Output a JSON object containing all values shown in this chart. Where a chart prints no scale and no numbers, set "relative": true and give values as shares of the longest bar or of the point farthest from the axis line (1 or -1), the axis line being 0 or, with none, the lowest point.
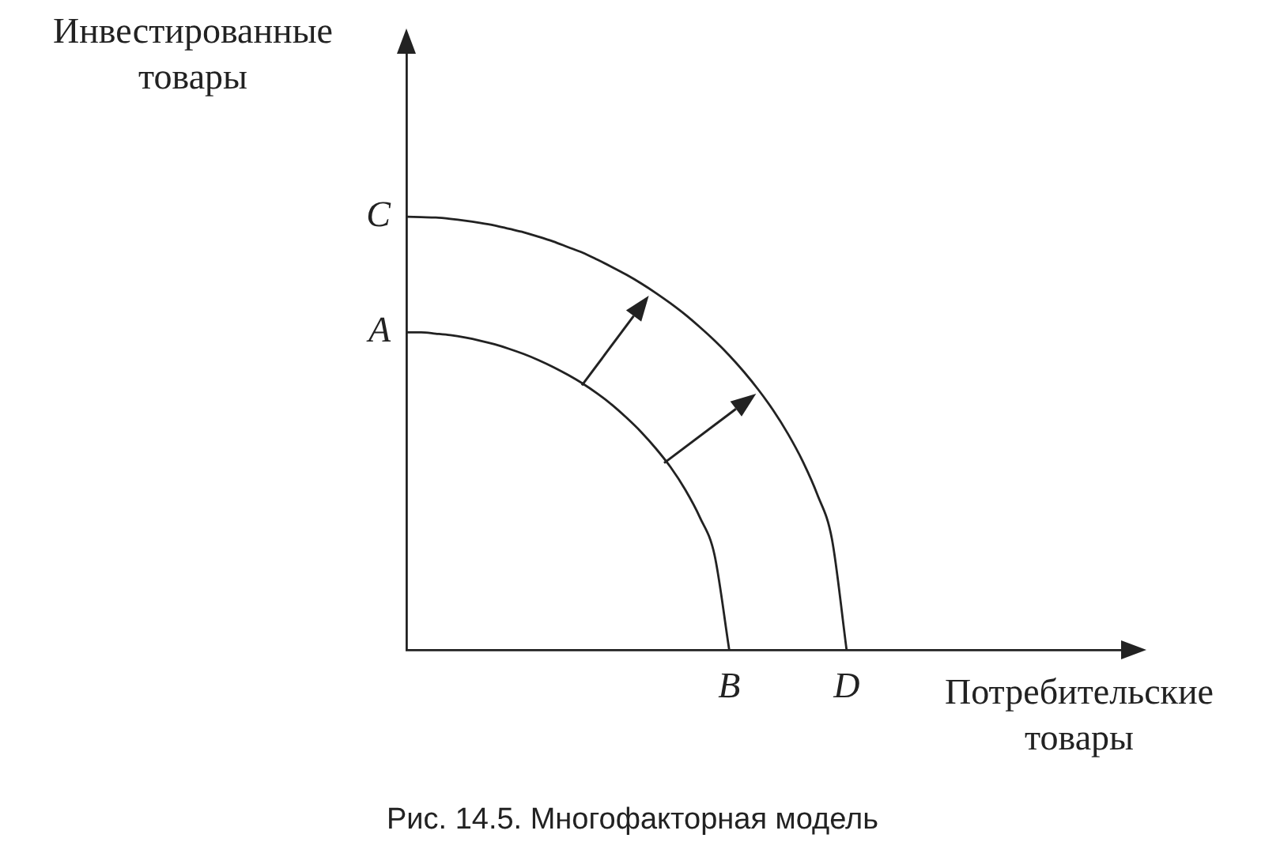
{
  "chart_data": {
    "type": "line",
    "relative": true,
    "marker": "none",
    "line_style": "solid",
    "xlabel": "Потребительские товары",
    "ylabel": "Инвестированные товары",
    "categories": [
      null,
      null,
      null,
      null,
      null,
      null,
      null,
      null,
      null,
      null,
      null,
      null,
      null,
      null,
      null,
      null,
      null,
      null,
      null,
      null,
      null,
      null,
      "B",
      null,
      null,
      null,
      null,
      null,
      null,
      null,
      "D",
      null,
      null,
      null,
      null,
      null,
      null,
      null,
      null,
      null,
      null,
      null,
      null,
      null,
      null,
      null,
      null,
      null,
      null,
      null,
      null
    ],
    "series": [
      {
        "color": "#222222",
        "values": [
          0.733,
          0.733,
          0.73,
          0.7265,
          0.721,
          0.714,
          0.7055,
          0.695,
          0.683,
          0.669,
          0.653,
          0.635,
          0.615,
          0.592,
          0.566,
          0.536,
          0.503,
          0.465,
          0.422,
          0.37,
          0.306,
          0.219,
          0,
          null,
          null,
          null,
          null,
          null,
          null,
          null,
          null,
          null,
          null,
          null,
          null,
          null,
          null,
          null,
          null,
          null,
          null,
          null,
          null,
          null,
          null,
          null,
          null,
          null,
          null,
          null,
          null
        ]
      },
      {
        "color": "#222222",
        "values": [
          1,
          0.999,
          0.998,
          0.995,
          0.991,
          0.986,
          0.98,
          0.972,
          0.964,
          0.954,
          0.943,
          0.93,
          0.917,
          0.901,
          0.884,
          0.866,
          0.846,
          0.824,
          0.8,
          0.774,
          0.745,
          0.714,
          0.68,
          0.642,
          0.6,
          0.553,
          0.499,
          0.436,
          0.359,
          0.256,
          0,
          null,
          null,
          null,
          null,
          null,
          null,
          null,
          null,
          null,
          null,
          null,
          null,
          null,
          null,
          null,
          null,
          null,
          null,
          null,
          null
        ]
      }
    ],
    "annotations": [
      "A",
      "C",
      "Рис. 14.5. Многофакторная модель"
    ]
  }
}
